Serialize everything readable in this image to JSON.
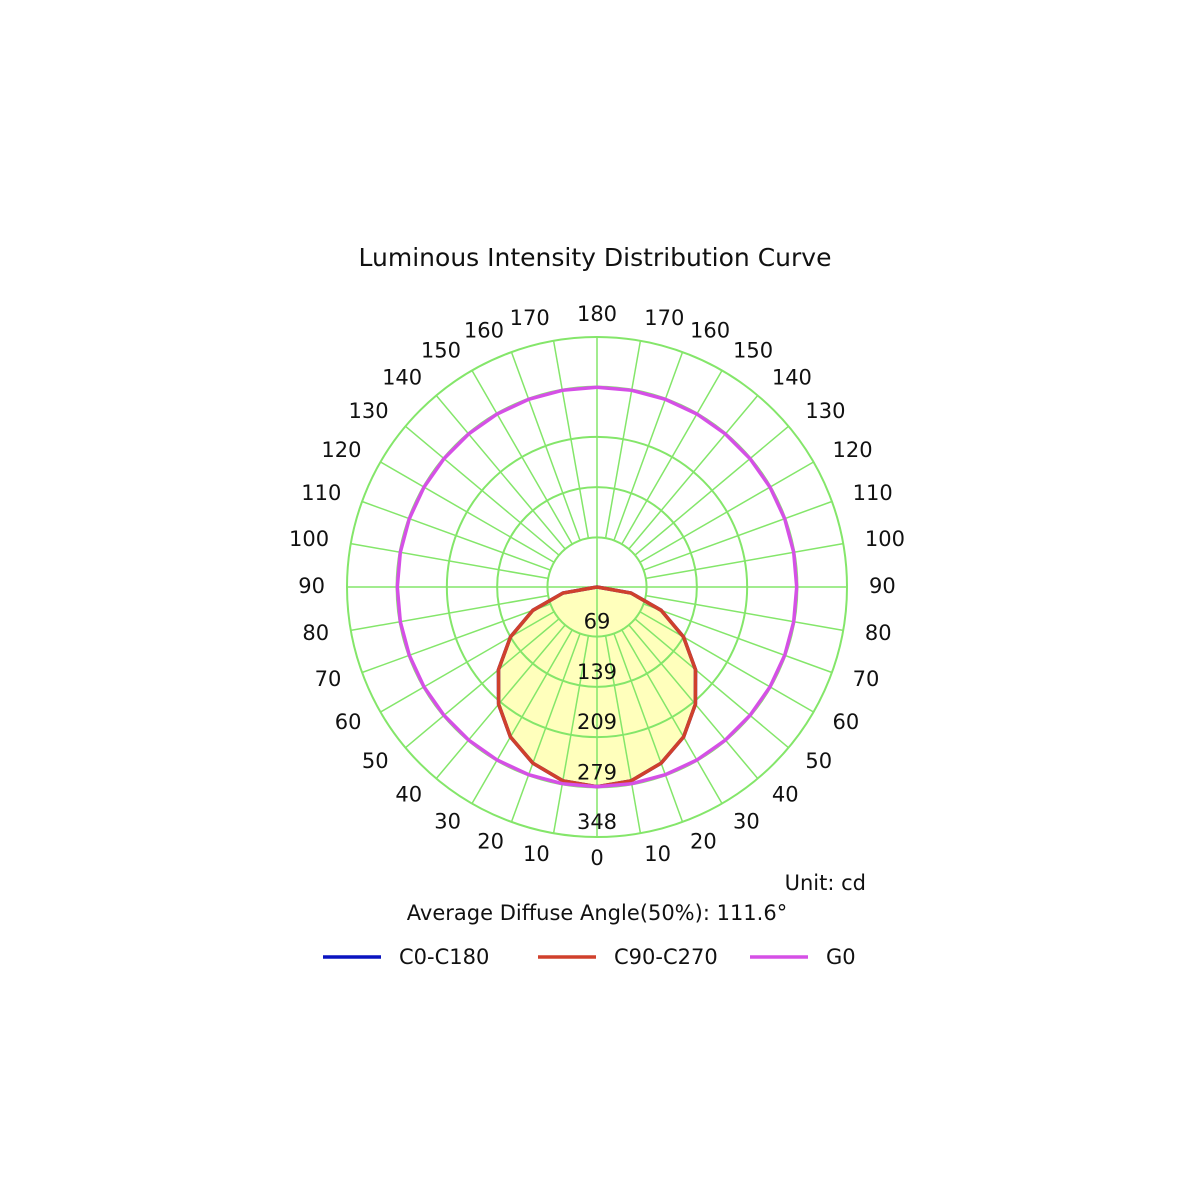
{
  "chart_data": {
    "type": "polar",
    "title": "Luminous Intensity Distribution Curve",
    "unit_label": "Unit: cd",
    "annotation": "Average Diffuse Angle(50%): 111.6°",
    "angles": [
      0,
      10,
      20,
      30,
      40,
      50,
      60,
      70,
      80,
      90,
      100,
      110,
      120,
      130,
      140,
      150,
      160,
      170,
      180
    ],
    "rlim": [
      0,
      348
    ],
    "rticks": [
      69,
      139,
      209,
      279,
      348
    ],
    "grid": true,
    "grid_color": "#84e66a",
    "series": [
      {
        "name": "C0-C180",
        "color": "#0a14c0",
        "fill": null,
        "values": [
          278,
          274,
          261,
          241,
          213,
          179,
          139,
          95,
          48,
          0,
          0,
          0,
          0,
          0,
          0,
          0,
          0,
          0,
          0
        ]
      },
      {
        "name": "C90-C270",
        "color": "#d0402c",
        "fill": "#ffffb0",
        "values": [
          278,
          274,
          261,
          241,
          213,
          179,
          139,
          95,
          48,
          0,
          0,
          0,
          0,
          0,
          0,
          0,
          0,
          0,
          0
        ]
      },
      {
        "name": "G0",
        "color": "#d550e6",
        "fill": null,
        "values": [
          278,
          278,
          278,
          278,
          278,
          278,
          278,
          278,
          278,
          278,
          278,
          278,
          278,
          278,
          278,
          278,
          278,
          278,
          278
        ]
      }
    ]
  }
}
